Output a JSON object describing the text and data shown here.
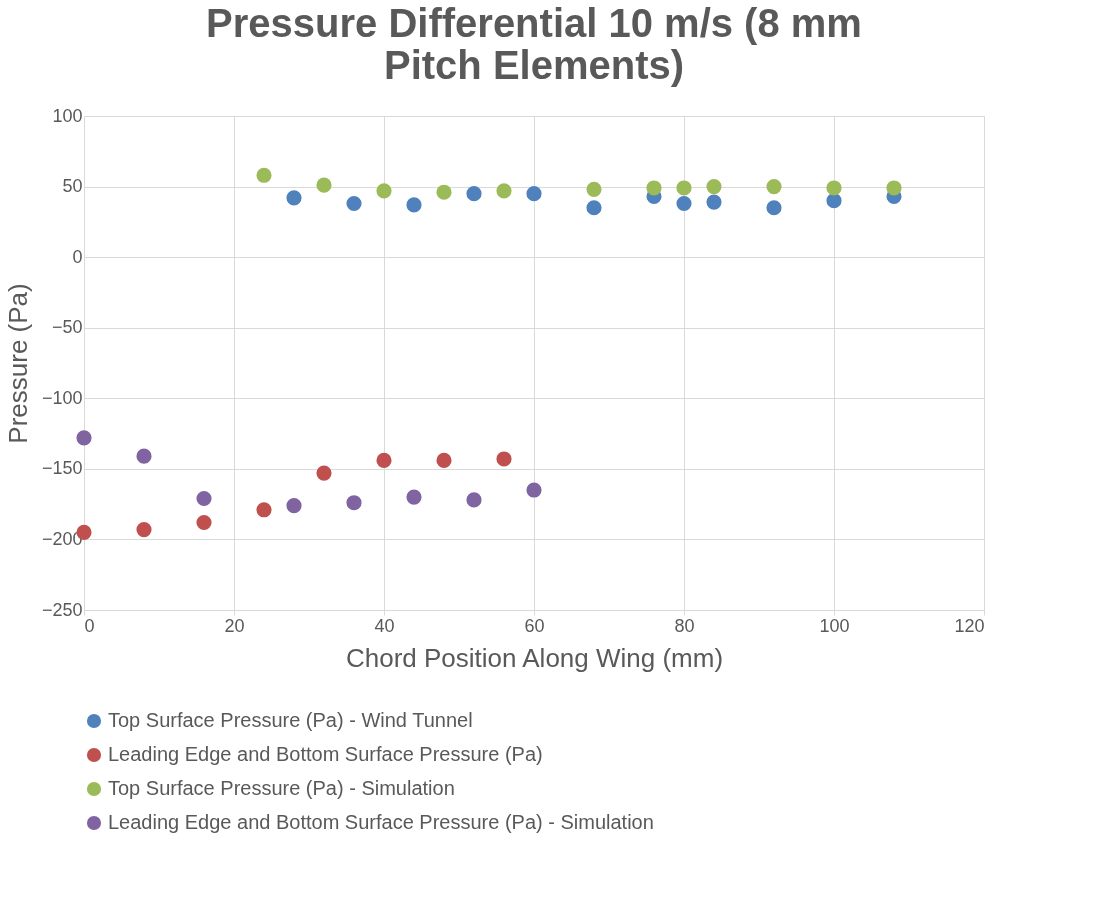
{
  "chart_data": {
    "type": "scatter",
    "title": "Pressure Differential 10 m/s (8 mm Pitch Elements)",
    "xlabel": "Chord Position Along Wing (mm)",
    "ylabel": "Pressure (Pa)",
    "xlim": [
      0,
      120
    ],
    "xticks": [
      0,
      20,
      40,
      60,
      80,
      100,
      120
    ],
    "ylim": [
      -250,
      100
    ],
    "yticks": [
      -250,
      -200,
      -150,
      -100,
      -50,
      0,
      50,
      100
    ],
    "grid": true,
    "legend": "bottom",
    "marker": "circle",
    "series": [
      {
        "name": "Top Surface Pressure (Pa) - Wind Tunnel",
        "color": "#4f81bd",
        "x": [
          28,
          36,
          44,
          52,
          60,
          68,
          76,
          80,
          84,
          92,
          100,
          108
        ],
        "values": [
          42,
          38,
          37,
          45,
          45,
          35,
          43,
          38,
          39,
          35,
          40,
          43
        ]
      },
      {
        "name": "Leading Edge and Bottom Surface Pressure (Pa)",
        "color": "#c0504d",
        "x": [
          0,
          8,
          16,
          24,
          32,
          40,
          48,
          56
        ],
        "values": [
          -195,
          -193,
          -188,
          -179,
          -153,
          -144,
          -144,
          -143
        ]
      },
      {
        "name": "Top Surface Pressure (Pa) - Simulation",
        "color": "#9bbb59",
        "x": [
          24,
          32,
          40,
          48,
          56,
          68,
          76,
          80,
          84,
          92,
          100,
          108
        ],
        "values": [
          58,
          51,
          47,
          46,
          47,
          48,
          49,
          49,
          50,
          50,
          49,
          49
        ]
      },
      {
        "name": "Leading Edge and Bottom Surface Pressure (Pa) - Simulation",
        "color": "#8064a2",
        "x": [
          0,
          8,
          16,
          28,
          36,
          44,
          52,
          60
        ],
        "values": [
          -128,
          -141,
          -171,
          -176,
          -174,
          -170,
          -172,
          -165
        ]
      }
    ]
  }
}
